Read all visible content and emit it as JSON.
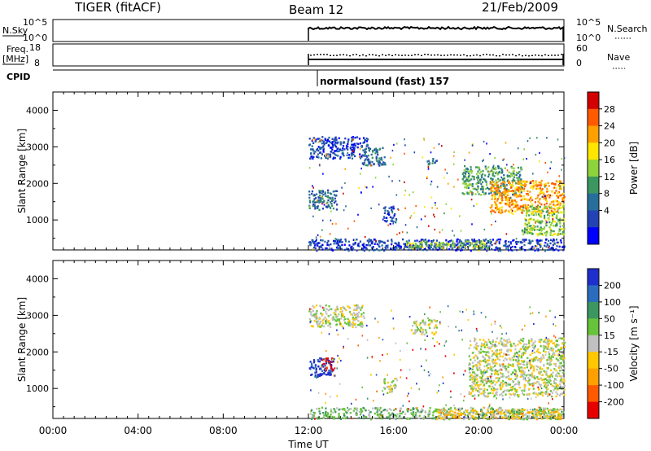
{
  "header": {
    "radar_title": "TIGER (fitACF)",
    "beam": "Beam 12",
    "date": "21/Feb/2009"
  },
  "top_panels": {
    "nsky_label": "N.Sky",
    "nsky_ticks": [
      "10^5",
      "10^0"
    ],
    "nsearch_label": "N.Search",
    "nsearch_ticks": [
      "10^5",
      "10^0"
    ],
    "freq_label_line1": "Freq.",
    "freq_label_line2": "[MHz]",
    "freq_ticks": [
      "18",
      "8"
    ],
    "nave_label": "Nave",
    "nave_ticks": [
      "60",
      "0"
    ],
    "cpid_label": "CPID",
    "cpid_value": "normalsound (fast) 157"
  },
  "chart_data": [
    {
      "type": "heatmap",
      "ylabel": "Slant Range [km]",
      "yticks": [
        1000,
        2000,
        3000,
        4000
      ],
      "ylim": [
        180,
        4500
      ],
      "xlim_hours": [
        0,
        24
      ],
      "data_start_hour": 12,
      "colorbar_label": "Power [dB]",
      "colorbar_ticks": [
        "28",
        "24",
        "20",
        "16",
        "12",
        "8",
        "4"
      ],
      "colors": [
        "#d20000",
        "#ff5a00",
        "#ffa000",
        "#ffe600",
        "#8ed23c",
        "#3c9660",
        "#286e9b",
        "#2343b4",
        "#0000ff"
      ],
      "regions": [
        {
          "h0": 12.0,
          "h1": 14.8,
          "r0": 2700,
          "r1": 3300,
          "level": 7
        },
        {
          "h0": 14.5,
          "h1": 15.6,
          "r0": 2500,
          "r1": 3000,
          "level": 6
        },
        {
          "h0": 12.0,
          "h1": 13.3,
          "r0": 1300,
          "r1": 1850,
          "level": 6
        },
        {
          "h0": 15.5,
          "h1": 16.1,
          "r0": 900,
          "r1": 1400,
          "level": 7
        },
        {
          "h0": 12.0,
          "h1": 24.0,
          "r0": 180,
          "r1": 500,
          "level": 7
        },
        {
          "h0": 16.5,
          "h1": 20.5,
          "r0": 250,
          "r1": 450,
          "level": 4
        },
        {
          "h0": 19.2,
          "h1": 22.0,
          "r0": 1700,
          "r1": 2500,
          "level": 5
        },
        {
          "h0": 20.5,
          "h1": 24.0,
          "r0": 1200,
          "r1": 2100,
          "level": 2
        },
        {
          "h0": 22.0,
          "h1": 24.0,
          "r0": 600,
          "r1": 1400,
          "level": 4
        },
        {
          "h0": 17.5,
          "h1": 18.0,
          "r0": 2500,
          "r1": 2700,
          "level": 6
        }
      ]
    },
    {
      "type": "heatmap",
      "ylabel": "Slant Range [km]",
      "yticks": [
        1000,
        2000,
        3000,
        4000
      ],
      "ylim": [
        180,
        4500
      ],
      "xlim_hours": [
        0,
        24
      ],
      "data_start_hour": 12,
      "xticks": [
        "00:00",
        "04:00",
        "08:00",
        "12:00",
        "16:00",
        "20:00",
        "00:00"
      ],
      "xlabel": "Time UT",
      "colorbar_label": "Velocity [m s⁻¹]",
      "colorbar_ticks": [
        "200",
        "100",
        "50",
        "15",
        "-15",
        "-50",
        "-100",
        "-200"
      ],
      "colors": [
        "#1f2fcd",
        "#2b6cbe",
        "#3c9660",
        "#67c33a",
        "#c0c0c0",
        "#ffc800",
        "#ffa000",
        "#ff5a00",
        "#e60000"
      ],
      "regions": [
        {
          "h0": 12.0,
          "h1": 14.6,
          "r0": 2700,
          "r1": 3300,
          "level": 4
        },
        {
          "h0": 12.0,
          "h1": 13.2,
          "r0": 1300,
          "r1": 1850,
          "level": 0
        },
        {
          "h0": 12.6,
          "h1": 13.1,
          "r0": 1500,
          "r1": 1850,
          "level": 8
        },
        {
          "h0": 15.5,
          "h1": 16.1,
          "r0": 900,
          "r1": 1300,
          "level": 4
        },
        {
          "h0": 12.0,
          "h1": 24.0,
          "r0": 180,
          "r1": 500,
          "level": 3
        },
        {
          "h0": 18.0,
          "h1": 24.0,
          "r0": 180,
          "r1": 450,
          "level": 5
        },
        {
          "h0": 19.5,
          "h1": 24.0,
          "r0": 800,
          "r1": 2400,
          "level": 4
        },
        {
          "h0": 16.8,
          "h1": 18.0,
          "r0": 2500,
          "r1": 2900,
          "level": 4
        }
      ]
    }
  ]
}
